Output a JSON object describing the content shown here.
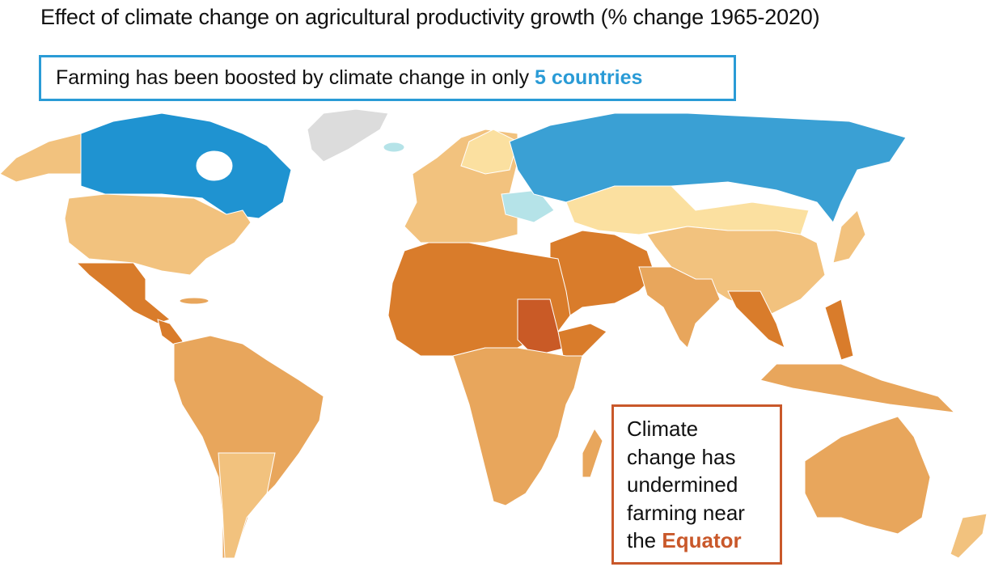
{
  "title": "Effect of climate change on agricultural productivity growth (% change 1965-2020)",
  "callout_boosted": {
    "text": "Farming has been boosted by climate change in only ",
    "highlight": "5 countries"
  },
  "callout_undermined": {
    "line1": "Climate",
    "line2": "change has",
    "line3": "undermined",
    "line4": "farming near",
    "line5_prefix": "the ",
    "highlight": "Equator"
  },
  "colors": {
    "boosted_strong": "#1f93d1",
    "boosted": "#3aa0d4",
    "boosted_slight": "#b5e3e8",
    "slight_negative": "#fbe0a0",
    "moderate_negative": "#f2c27e",
    "negative": "#e8a65c",
    "strong_negative": "#d97c2b",
    "severe_negative": "#c95a26",
    "no_data": "#dcdcdc",
    "highlight_blue": "#2a9bd6",
    "highlight_red": "#c9582a"
  }
}
